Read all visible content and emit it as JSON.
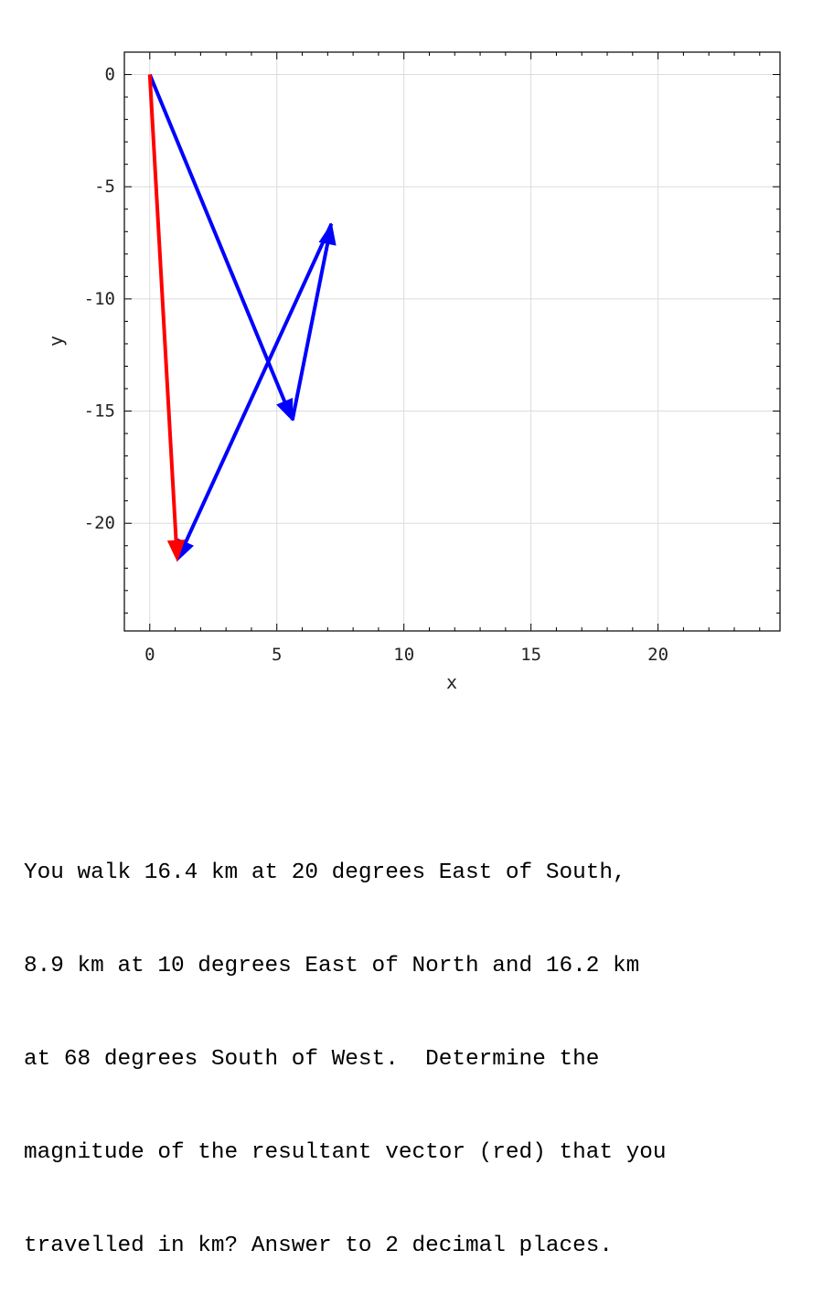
{
  "chart_data": {
    "type": "vector",
    "xlabel": "x",
    "ylabel": "y",
    "xlim": [
      -1,
      24.8
    ],
    "ylim": [
      -24.8,
      1
    ],
    "xticks": [
      0,
      5,
      10,
      15,
      20
    ],
    "yticks": [
      0,
      -5,
      -10,
      -15,
      -20
    ],
    "grid": true,
    "vectors": [
      {
        "role": "component",
        "color": "#0000ff",
        "start": [
          0,
          0
        ],
        "end": [
          5.61,
          -15.41
        ]
      },
      {
        "role": "component",
        "color": "#0000ff",
        "start": [
          5.61,
          -15.41
        ],
        "end": [
          7.15,
          -6.65
        ]
      },
      {
        "role": "component",
        "color": "#0000ff",
        "start": [
          7.15,
          -6.65
        ],
        "end": [
          1.08,
          -21.67
        ]
      },
      {
        "role": "resultant",
        "color": "#ff0000",
        "start": [
          0,
          0
        ],
        "end": [
          1.08,
          -21.67
        ]
      }
    ]
  },
  "question": {
    "lines": [
      "You walk 16.4 km at 20 degrees East of South,",
      "8.9 km at 10 degrees East of North and 16.2 km",
      "at 68 degrees South of West.  Determine the",
      "magnitude of the resultant vector (red) that you",
      "travelled in km? Answer to 2 decimal places."
    ]
  }
}
